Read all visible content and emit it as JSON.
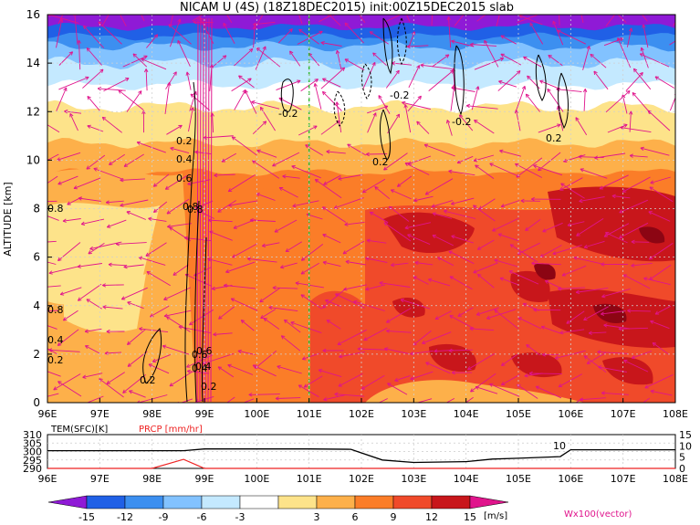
{
  "title": "NICAM U (4S) (18Z18DEC2015) init:00Z15DEC2015 slab",
  "colors": {
    "bands": [
      "#8f1ad6",
      "#2060e6",
      "#3c8ff0",
      "#82c2ff",
      "#c4e9ff",
      "#ffffff",
      "#fde38a",
      "#fdb04a",
      "#fb7d28",
      "#f04a2a",
      "#c8161b",
      "#8c0513"
    ],
    "vector": "#e0148c",
    "guide_line": "#33bb33",
    "temperature_line": "#000000",
    "precip_line": "#ee2222"
  },
  "chart_data": [
    {
      "type": "heatmap",
      "title": "NICAM U (4S) (18Z18DEC2015) init:00Z15DEC2015 slab",
      "ylabel": "ALTITUDE [km]",
      "xlim": [
        96,
        108
      ],
      "ylim": [
        0,
        16
      ],
      "xticks": [
        "96E",
        "97E",
        "98E",
        "99E",
        "100E",
        "101E",
        "102E",
        "103E",
        "104E",
        "105E",
        "106E",
        "107E",
        "108E"
      ],
      "yticks": [
        "0",
        "2",
        "4",
        "6",
        "8",
        "10",
        "12",
        "14",
        "16"
      ],
      "grid": true,
      "guide_line_x": 101,
      "colorbar": {
        "levels": [
          "-15",
          "-12",
          "-9",
          "-6",
          "-3",
          "3",
          "6",
          "9",
          "12",
          "15"
        ],
        "unit": "[m/s]"
      },
      "vector_label": "Wx100(vector)",
      "contour_labels": [
        "-0.2",
        "-0.2",
        "-0.2",
        "0.2",
        "0.2",
        "0.2",
        "0.4",
        "0.6",
        "0.8",
        "0.6",
        "0.4",
        "0.2",
        "0.4",
        "0.2",
        "0.6",
        "0.4",
        "0.2",
        "0.8",
        "0.8",
        "0.8"
      ]
    },
    {
      "type": "line",
      "series_labels": [
        "TEM(SFC)[K]",
        "PRCP [mm/hr]"
      ],
      "x": [
        96,
        97,
        98,
        98.6,
        99,
        100,
        101,
        101.8,
        102.4,
        103,
        104,
        104.5,
        105,
        105.8,
        106,
        107,
        108
      ],
      "series": [
        {
          "values": [
            300.5,
            300.5,
            300.5,
            300.5,
            301.5,
            301.5,
            301.5,
            301.3,
            295,
            293.5,
            294,
            295.5,
            296,
            297,
            301,
            301,
            301
          ]
        },
        {
          "values": [
            0,
            0,
            0,
            4,
            0,
            0,
            0,
            0,
            0,
            0,
            0,
            0,
            0,
            0,
            0,
            0,
            0
          ]
        }
      ],
      "ylim_left": [
        290,
        310
      ],
      "yticks_left": [
        "290",
        "295",
        "300",
        "305",
        "310"
      ],
      "ylim_right": [
        0,
        15
      ],
      "yticks_right": [
        "0",
        "5",
        "10",
        "15"
      ],
      "annotation": "10",
      "xticks": [
        "96E",
        "97E",
        "98E",
        "99E",
        "100E",
        "101E",
        "102E",
        "103E",
        "104E",
        "105E",
        "106E",
        "107E",
        "108E"
      ]
    }
  ]
}
